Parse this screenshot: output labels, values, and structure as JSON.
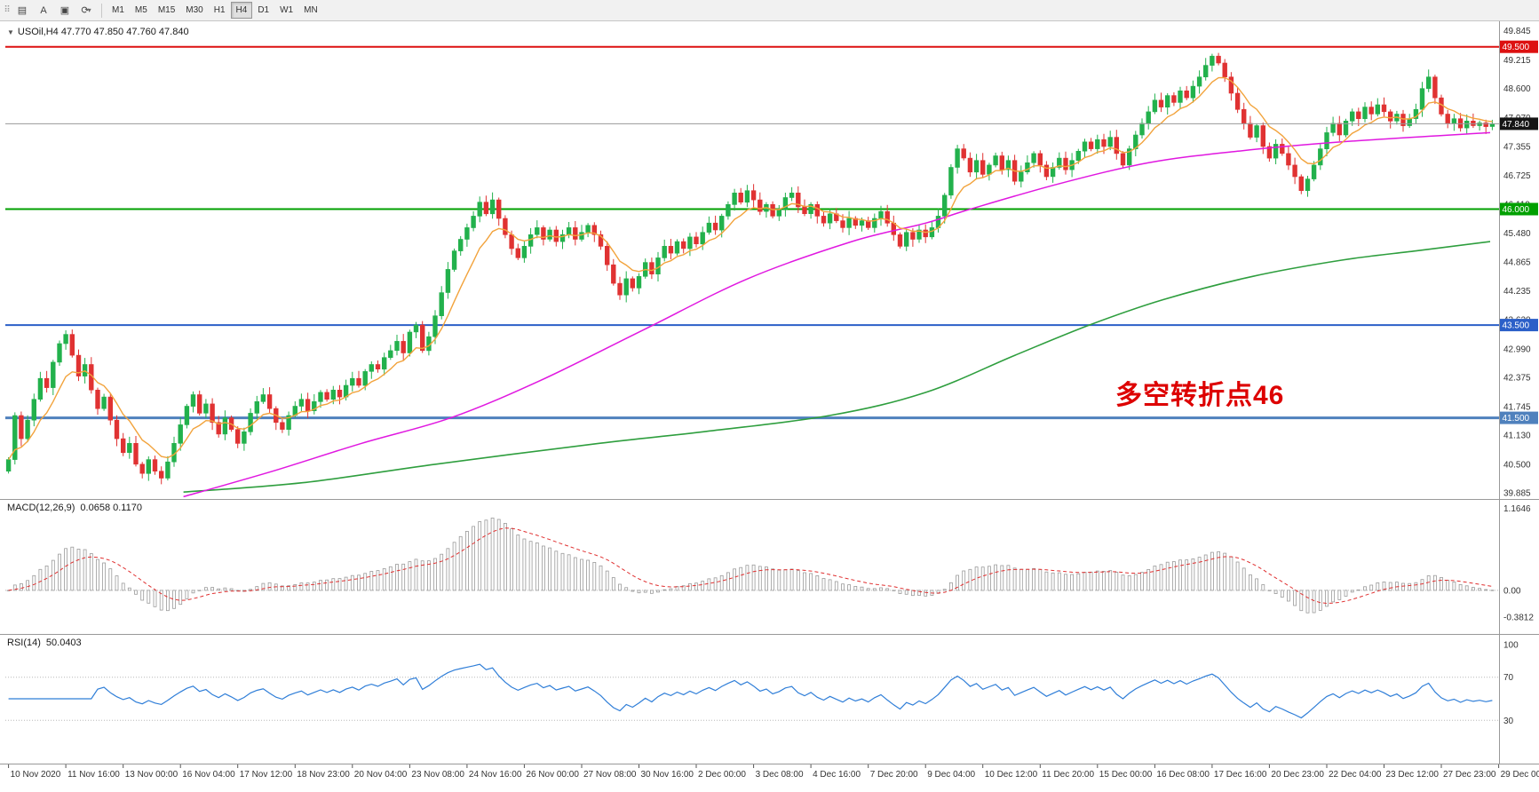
{
  "toolbar": {
    "icons": {
      "grip": "⠿",
      "chart_icon": "▤",
      "text_tool_icon": "A",
      "shapes_icon": "▣",
      "cycle_icon": "⟳",
      "caret_icon": "▾"
    },
    "timeframes": [
      "M1",
      "M5",
      "M15",
      "M30",
      "H1",
      "H4",
      "D1",
      "W1",
      "MN"
    ],
    "active_timeframe": "H4"
  },
  "chart": {
    "symbol_marker": "▼",
    "symbol_header": "USOil,H4   47.770 47.850 47.760 47.840",
    "annotation": {
      "text": "多空转折点46",
      "color": "#dd0000"
    }
  },
  "chart_data": {
    "type": "candlestick",
    "symbol": "USOil",
    "timeframe": "H4",
    "ohlc": {
      "open": "47.770",
      "high": "47.850",
      "low": "47.760",
      "close": "47.840"
    },
    "colors": {
      "up": "#22b14c",
      "down": "#e03232",
      "ma_fast": "#f2a33c",
      "ma_mid": "#e018e0",
      "ma_slow": "#2e9e3e",
      "rsi_line": "#2f7ed8",
      "macd_signal": "#e03030",
      "histogram_stroke": "#9a9a9a"
    },
    "ylim": [
      39.75,
      50.05
    ],
    "y_axis_labels": [
      "49.845",
      "49.215",
      "48.600",
      "47.970",
      "47.355",
      "46.725",
      "46.110",
      "45.480",
      "44.865",
      "44.235",
      "43.620",
      "42.990",
      "42.375",
      "41.745",
      "41.130",
      "40.500",
      "39.885"
    ],
    "x_labels": [
      "10 Nov 2020",
      "11 Nov 16:00",
      "13 Nov 00:00",
      "16 Nov 04:00",
      "17 Nov 12:00",
      "18 Nov 23:00",
      "20 Nov 04:00",
      "23 Nov 08:00",
      "24 Nov 16:00",
      "26 Nov 00:00",
      "27 Nov 08:00",
      "30 Nov 16:00",
      "2 Dec 00:00",
      "3 Dec 08:00",
      "4 Dec 16:00",
      "7 Dec 20:00",
      "9 Dec 04:00",
      "10 Dec 12:00",
      "11 Dec 20:00",
      "15 Dec 00:00",
      "16 Dec 08:00",
      "17 Dec 16:00",
      "20 Dec 23:00",
      "22 Dec 04:00",
      "23 Dec 12:00",
      "27 Dec 23:00",
      "29 Dec 00:00"
    ],
    "closes": [
      40.6,
      41.55,
      41.05,
      41.45,
      41.9,
      42.35,
      42.15,
      42.7,
      43.1,
      43.3,
      42.85,
      42.4,
      42.65,
      42.1,
      41.7,
      41.95,
      41.45,
      41.05,
      40.75,
      40.95,
      40.5,
      40.3,
      40.6,
      40.35,
      40.2,
      40.55,
      40.95,
      41.35,
      41.75,
      42.0,
      41.6,
      41.8,
      41.4,
      41.15,
      41.5,
      41.25,
      40.95,
      41.2,
      41.6,
      41.85,
      42.0,
      41.7,
      41.4,
      41.25,
      41.55,
      41.75,
      41.9,
      41.65,
      41.85,
      42.05,
      41.9,
      42.1,
      41.95,
      42.2,
      42.35,
      42.2,
      42.5,
      42.65,
      42.55,
      42.8,
      42.95,
      43.15,
      42.9,
      43.35,
      43.5,
      42.95,
      43.25,
      43.7,
      44.2,
      44.7,
      45.1,
      45.35,
      45.6,
      45.85,
      46.15,
      45.9,
      46.2,
      45.8,
      45.45,
      45.15,
      44.95,
      45.2,
      45.45,
      45.6,
      45.35,
      45.55,
      45.3,
      45.45,
      45.6,
      45.35,
      45.5,
      45.65,
      45.45,
      45.2,
      44.8,
      44.4,
      44.15,
      44.5,
      44.3,
      44.55,
      44.85,
      44.6,
      44.95,
      45.2,
      45.05,
      45.3,
      45.15,
      45.4,
      45.25,
      45.5,
      45.7,
      45.55,
      45.85,
      46.1,
      46.35,
      46.15,
      46.4,
      46.2,
      45.95,
      46.1,
      45.85,
      46.0,
      46.25,
      46.35,
      46.05,
      45.9,
      46.1,
      45.85,
      45.7,
      45.9,
      45.75,
      45.6,
      45.8,
      45.65,
      45.75,
      45.6,
      45.8,
      45.95,
      45.7,
      45.45,
      45.2,
      45.5,
      45.35,
      45.55,
      45.4,
      45.6,
      45.85,
      46.3,
      46.9,
      47.3,
      47.1,
      46.8,
      47.05,
      46.75,
      46.95,
      47.15,
      46.85,
      47.05,
      46.6,
      46.8,
      47.0,
      47.2,
      46.95,
      46.7,
      46.9,
      47.1,
      46.85,
      47.05,
      47.25,
      47.45,
      47.3,
      47.5,
      47.35,
      47.55,
      47.2,
      46.95,
      47.3,
      47.6,
      47.85,
      48.1,
      48.35,
      48.2,
      48.45,
      48.3,
      48.55,
      48.4,
      48.65,
      48.85,
      49.1,
      49.3,
      49.15,
      48.85,
      48.5,
      48.15,
      47.85,
      47.55,
      47.8,
      47.35,
      47.1,
      47.4,
      47.2,
      46.95,
      46.7,
      46.4,
      46.65,
      46.95,
      47.3,
      47.65,
      47.85,
      47.6,
      47.9,
      48.1,
      47.95,
      48.2,
      48.05,
      48.25,
      48.1,
      47.9,
      48.05,
      47.8,
      47.95,
      48.15,
      48.6,
      48.85,
      48.4,
      48.05,
      47.85,
      47.95,
      47.75,
      47.9,
      47.8,
      47.86,
      47.78,
      47.84
    ],
    "ma_mid_points": [
      [
        0.12,
        39.8
      ],
      [
        0.18,
        40.35
      ],
      [
        0.24,
        40.95
      ],
      [
        0.3,
        41.5
      ],
      [
        0.36,
        42.3
      ],
      [
        0.43,
        43.4
      ],
      [
        0.5,
        44.5
      ],
      [
        0.57,
        45.3
      ],
      [
        0.62,
        45.7
      ],
      [
        0.65,
        46.0
      ],
      [
        0.71,
        46.55
      ],
      [
        0.77,
        47.0
      ],
      [
        0.83,
        47.25
      ],
      [
        0.9,
        47.45
      ],
      [
        1.0,
        47.65
      ]
    ],
    "ma_slow_points": [
      [
        0.12,
        39.9
      ],
      [
        0.2,
        40.1
      ],
      [
        0.29,
        40.5
      ],
      [
        0.4,
        40.95
      ],
      [
        0.47,
        41.2
      ],
      [
        0.555,
        41.55
      ],
      [
        0.62,
        42.05
      ],
      [
        0.68,
        42.85
      ],
      [
        0.73,
        43.5
      ],
      [
        0.78,
        44.05
      ],
      [
        0.84,
        44.55
      ],
      [
        0.9,
        44.9
      ],
      [
        0.95,
        45.1
      ],
      [
        1.0,
        45.3
      ]
    ],
    "hlines": [
      {
        "price": 49.5,
        "label": "49.500",
        "color": "#dd1111",
        "width": 2
      },
      {
        "price": 46.0,
        "label": "46.000",
        "color": "#00a000",
        "width": 2
      },
      {
        "price": 43.5,
        "label": "43.500",
        "color": "#2b5fc8",
        "width": 2
      },
      {
        "price": 41.5,
        "label": "41.500",
        "color": "#4f81bd",
        "width": 3
      }
    ],
    "current_price": {
      "price": 47.84,
      "label": "47.840",
      "line_color": "#9a9a9a",
      "badge_color": "#151515"
    },
    "indicators": [
      {
        "name": "MACD(12,26,9)",
        "values": "0.0658 0.1170",
        "axis_labels": [
          "1.1646",
          "0.00",
          "-0.3812"
        ],
        "params": [
          12,
          26,
          9
        ]
      },
      {
        "name": "RSI(14)",
        "values": "50.0403",
        "axis_labels": [
          "100",
          "70",
          "30"
        ],
        "levels": [
          70,
          30
        ],
        "period": 14
      }
    ]
  }
}
